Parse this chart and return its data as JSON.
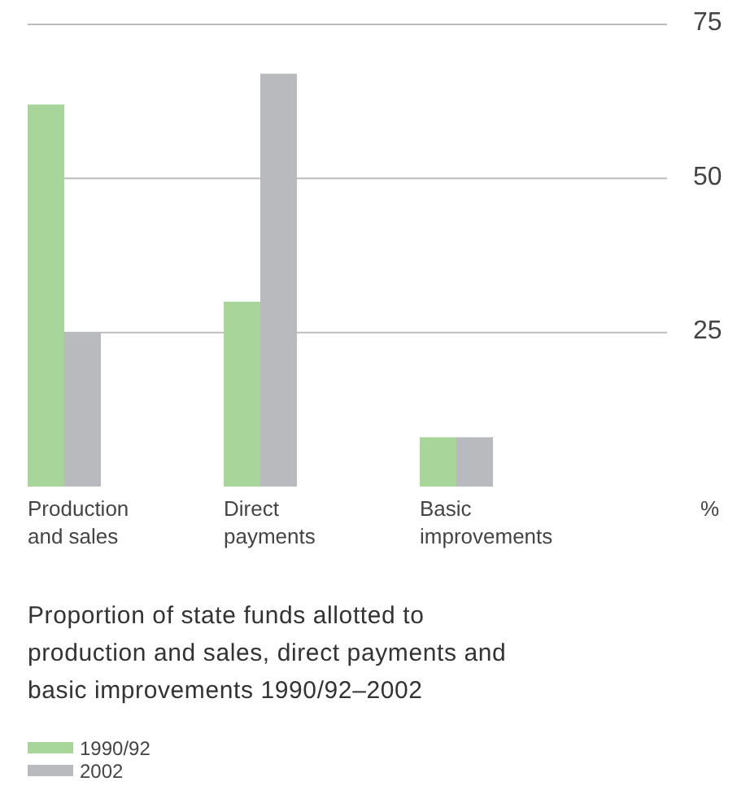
{
  "chart_data": {
    "type": "bar",
    "title": "Proportion of state funds allotted to production and sales, direct payments and basic improvements 1990/92–2002",
    "ylabel": "%",
    "categories": [
      "Production and sales",
      "Direct payments",
      "Basic improvements"
    ],
    "series": [
      {
        "name": "1990/92",
        "color": "#a8d59a",
        "values": [
          62,
          30,
          8
        ]
      },
      {
        "name": "2002",
        "color": "#b9babe",
        "values": [
          25,
          67,
          8
        ]
      }
    ],
    "ylim": [
      0,
      75
    ],
    "yticks": [
      25,
      50,
      75
    ],
    "grid": "y",
    "legend": "bottom"
  }
}
